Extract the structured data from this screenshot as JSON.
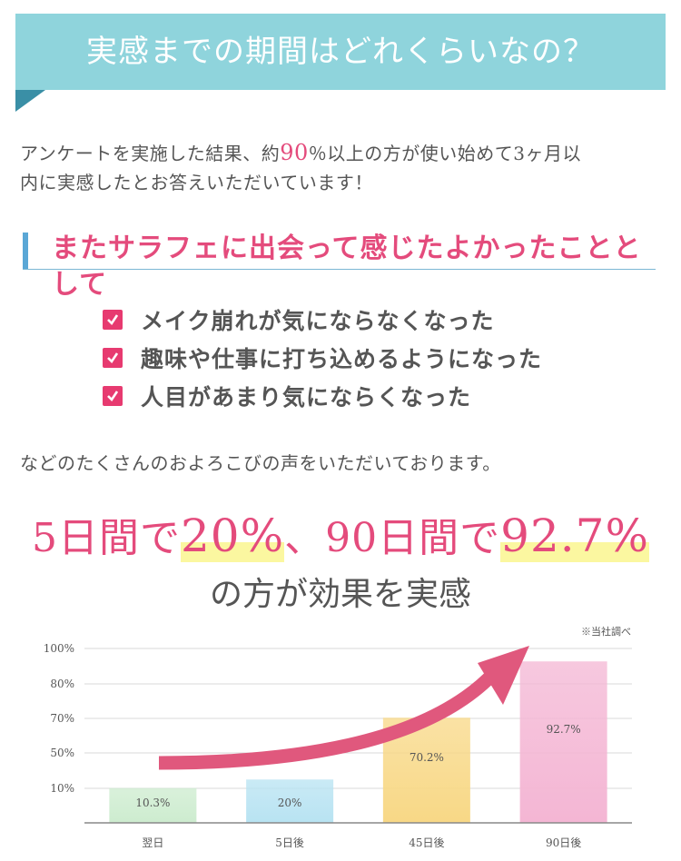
{
  "banner": {
    "title": "実感までの期間はどれくらいなの？"
  },
  "intro": {
    "line1_a": "アンケートを実施した結果、約",
    "line1_highlight": "90",
    "line1_b": "％以上の方が使い始めて3ヶ月以",
    "line2": "内に実感したとお答えいただいています！"
  },
  "subhead": {
    "text": "またサラフェに出会って感じたよかったこととして"
  },
  "checklist": [
    {
      "label": "メイク崩れが気にならなくなった"
    },
    {
      "label": "趣味や仕事に打ち込めるようになった"
    },
    {
      "label": "人目があまり気にならくなった"
    }
  ],
  "voices": "などのたくさんのおよろこびの声をいただいております。",
  "headline": {
    "part1": "5日間で",
    "value1": "20%",
    "part2": "、90日間で",
    "value2": "92.7%",
    "line2": "の方が効果を実感"
  },
  "chart_note": "※当社調べ",
  "chart_data": {
    "type": "bar",
    "categories": [
      "翌日",
      "5日後",
      "45日後",
      "90日後"
    ],
    "values": [
      10.3,
      20,
      70.2,
      92.7
    ],
    "value_labels": [
      "10.3%",
      "20%",
      "70.2%",
      "92.7%"
    ],
    "y_ticks": [
      {
        "value": 10,
        "label": "10%"
      },
      {
        "value": 50,
        "label": "50%"
      },
      {
        "value": 70,
        "label": "70%"
      },
      {
        "value": 80,
        "label": "80%"
      },
      {
        "value": 100,
        "label": "100%"
      }
    ],
    "ylim": [
      0,
      100
    ],
    "colors": [
      "#cdeccf",
      "#b8e3f2",
      "#f8d886",
      "#f4b6d4"
    ],
    "arrow_color": "#e0587d",
    "grid": true
  }
}
